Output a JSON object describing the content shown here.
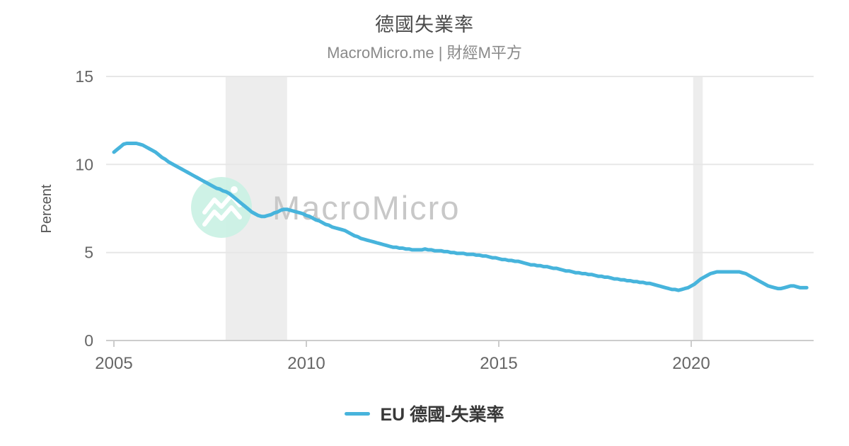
{
  "header": {
    "title": "德國失業率",
    "subtitle": "MacroMicro.me | 財經M平方"
  },
  "watermark": {
    "brand": "MacroMicro",
    "logo_icon": "mountain-peaks-icon",
    "circle_color": "#cbf1e5",
    "glyph_color": "#ffffff",
    "text_color": "#c8c8c8"
  },
  "legend": {
    "items": [
      {
        "label": "EU 德國-失業率",
        "color": "#47b4dc"
      }
    ]
  },
  "colors": {
    "line": "#47b4dc",
    "grid": "#e7e7e7",
    "axis": "#cccccc",
    "band": "#ededed",
    "tick_text": "#666666",
    "axis_title_text": "#555555"
  },
  "chart_data": {
    "type": "line",
    "title": "德國失業率",
    "subtitle": "MacroMicro.me | 財經M平方",
    "xlabel": "",
    "ylabel": "Percent",
    "ylim": [
      0,
      15
    ],
    "xlim": [
      2004.8,
      2023.2
    ],
    "yticks": [
      0,
      5,
      10,
      15
    ],
    "xticks": [
      2005,
      2010,
      2015,
      2020
    ],
    "grid": "horizontal",
    "legend_position": "bottom",
    "recession_bands": [
      {
        "start": 2007.9,
        "end": 2009.5
      },
      {
        "start": 2020.05,
        "end": 2020.3
      }
    ],
    "series": [
      {
        "name": "EU 德國-失業率",
        "color": "#47b4dc",
        "unit": "percent",
        "frequency": "monthly",
        "x_start": 2005.0,
        "x_interval_years": 0.0833333,
        "values": [
          10.7,
          10.85,
          11.0,
          11.15,
          11.2,
          11.2,
          11.2,
          11.2,
          11.15,
          11.1,
          11.0,
          10.9,
          10.8,
          10.7,
          10.55,
          10.4,
          10.3,
          10.15,
          10.05,
          9.95,
          9.85,
          9.75,
          9.65,
          9.55,
          9.45,
          9.35,
          9.25,
          9.15,
          9.05,
          8.95,
          8.85,
          8.75,
          8.65,
          8.6,
          8.5,
          8.45,
          8.35,
          8.2,
          8.05,
          7.9,
          7.75,
          7.6,
          7.45,
          7.3,
          7.2,
          7.1,
          7.05,
          7.05,
          7.1,
          7.15,
          7.25,
          7.3,
          7.4,
          7.45,
          7.45,
          7.4,
          7.35,
          7.3,
          7.25,
          7.2,
          7.1,
          7.05,
          6.95,
          6.85,
          6.8,
          6.7,
          6.6,
          6.55,
          6.45,
          6.4,
          6.35,
          6.3,
          6.25,
          6.15,
          6.05,
          5.95,
          5.9,
          5.8,
          5.75,
          5.7,
          5.65,
          5.6,
          5.55,
          5.5,
          5.45,
          5.4,
          5.35,
          5.3,
          5.3,
          5.25,
          5.25,
          5.2,
          5.2,
          5.15,
          5.15,
          5.15,
          5.15,
          5.2,
          5.15,
          5.15,
          5.1,
          5.1,
          5.1,
          5.05,
          5.05,
          5.0,
          5.0,
          4.95,
          4.95,
          4.95,
          4.9,
          4.9,
          4.9,
          4.85,
          4.85,
          4.8,
          4.8,
          4.75,
          4.7,
          4.7,
          4.65,
          4.6,
          4.6,
          4.55,
          4.55,
          4.5,
          4.5,
          4.45,
          4.4,
          4.35,
          4.3,
          4.3,
          4.25,
          4.25,
          4.2,
          4.2,
          4.15,
          4.1,
          4.1,
          4.05,
          4.0,
          3.95,
          3.95,
          3.9,
          3.85,
          3.85,
          3.8,
          3.8,
          3.75,
          3.75,
          3.7,
          3.65,
          3.65,
          3.6,
          3.6,
          3.55,
          3.5,
          3.5,
          3.45,
          3.45,
          3.4,
          3.4,
          3.35,
          3.35,
          3.3,
          3.3,
          3.25,
          3.25,
          3.2,
          3.15,
          3.1,
          3.05,
          3.0,
          2.95,
          2.9,
          2.9,
          2.85,
          2.9,
          2.95,
          3.0,
          3.1,
          3.2,
          3.35,
          3.5,
          3.6,
          3.7,
          3.8,
          3.85,
          3.9,
          3.9,
          3.9,
          3.9,
          3.9,
          3.9,
          3.9,
          3.9,
          3.85,
          3.8,
          3.7,
          3.6,
          3.5,
          3.4,
          3.3,
          3.2,
          3.1,
          3.05,
          3.0,
          2.95,
          2.95,
          3.0,
          3.05,
          3.1,
          3.1,
          3.05,
          3.0,
          3.0,
          3.0
        ]
      }
    ]
  }
}
